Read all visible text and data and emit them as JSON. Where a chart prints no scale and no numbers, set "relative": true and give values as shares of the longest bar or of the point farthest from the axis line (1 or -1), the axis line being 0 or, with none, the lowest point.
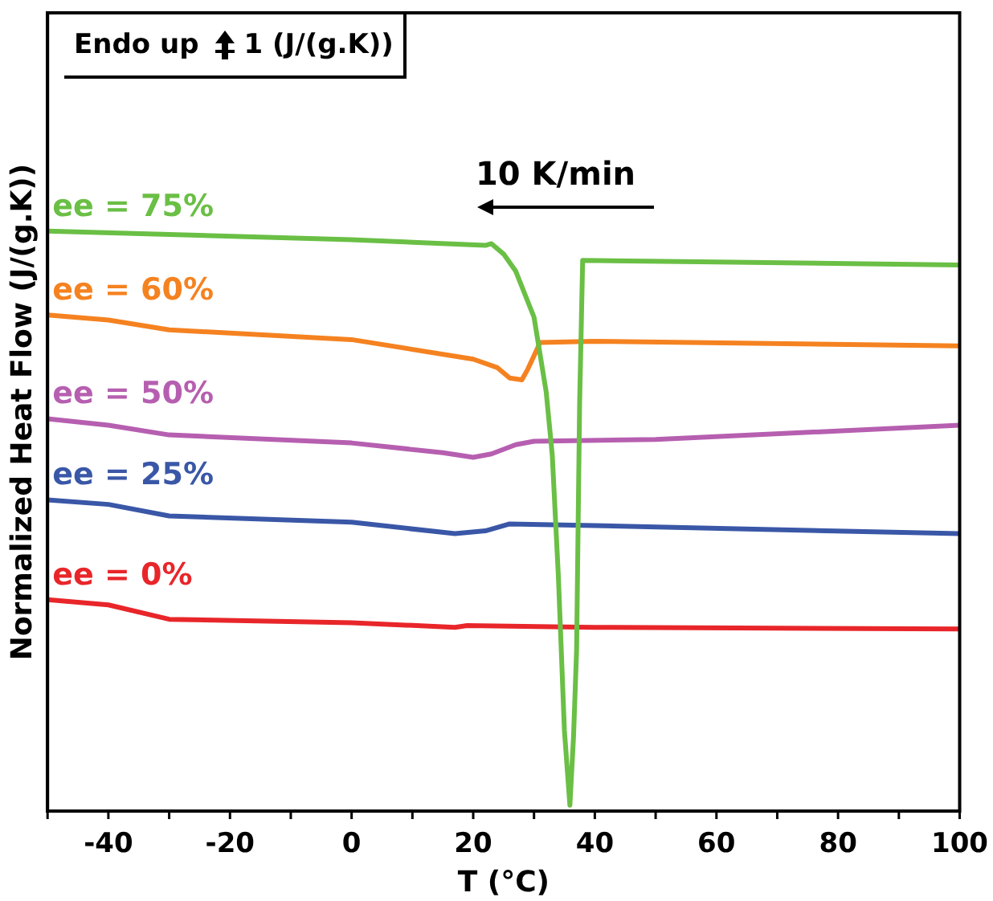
{
  "chart_data": {
    "type": "line",
    "xlabel": "T (°C)",
    "ylabel": "Normalized Heat Flow (J/(g.K))",
    "annotations": [
      "Endo up",
      "1 (J/(g.K))",
      "10 K/min"
    ],
    "relative": true,
    "xlim": [
      -50,
      100
    ],
    "xticks": [
      -40,
      -20,
      0,
      20,
      40,
      60,
      80,
      100
    ],
    "grid": false,
    "legend": false,
    "marker": "none",
    "line_style": "solid",
    "series": [
      {
        "name": "ee = 75%",
        "color": "#6abf45",
        "x": [
          -50,
          0,
          22,
          23,
          25,
          27,
          30,
          32,
          33,
          34,
          35,
          35.9,
          36.5,
          37,
          37.5,
          38,
          60,
          100
        ],
        "values": [
          1.0,
          0.985,
          0.975,
          0.978,
          0.96,
          0.93,
          0.85,
          0.72,
          0.61,
          0.4,
          0.13,
          0,
          0.12,
          0.27,
          0.7,
          0.949,
          0.946,
          0.941
        ]
      },
      {
        "name": "ee = 60%",
        "color": "#f58220",
        "x": [
          -50,
          -40,
          -30,
          0,
          20,
          24,
          26,
          28,
          29,
          30,
          31,
          40,
          100
        ],
        "values": [
          0.854,
          0.845,
          0.828,
          0.811,
          0.777,
          0.762,
          0.744,
          0.741,
          0.76,
          0.783,
          0.806,
          0.808,
          0.8
        ]
      },
      {
        "name": "ee = 50%",
        "color": "#b65fb0",
        "x": [
          -50,
          -40,
          -30,
          0,
          15,
          20,
          23,
          27,
          30,
          50,
          100
        ],
        "values": [
          0.673,
          0.662,
          0.645,
          0.631,
          0.614,
          0.606,
          0.612,
          0.628,
          0.634,
          0.637,
          0.662
        ]
      },
      {
        "name": "ee = 25%",
        "color": "#3a57a7",
        "x": [
          -50,
          -40,
          -30,
          0,
          17,
          22,
          26,
          40,
          100
        ],
        "values": [
          0.532,
          0.524,
          0.504,
          0.493,
          0.473,
          0.478,
          0.49,
          0.487,
          0.473
        ]
      },
      {
        "name": "ee = 0%",
        "color": "#e8262a",
        "x": [
          -50,
          -40,
          -30,
          0,
          17,
          19,
          40,
          100
        ],
        "values": [
          0.358,
          0.349,
          0.324,
          0.318,
          0.31,
          0.313,
          0.31,
          0.307
        ]
      }
    ]
  }
}
